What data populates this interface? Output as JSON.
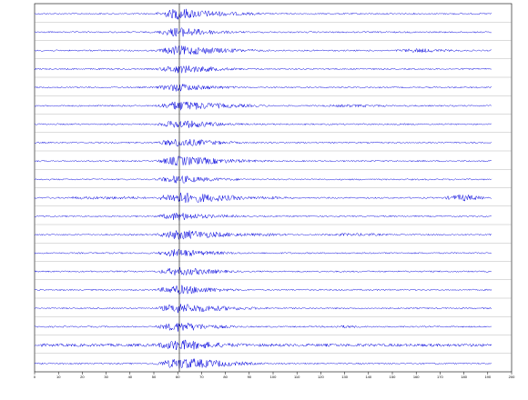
{
  "chart_data": {
    "type": "seismogram",
    "color": "#0000dd",
    "xlim": [
      0,
      200
    ],
    "xticks": [
      0,
      10,
      20,
      30,
      40,
      50,
      60,
      70,
      80,
      90,
      100,
      110,
      120,
      130,
      140,
      150,
      160,
      170,
      180,
      190,
      200
    ],
    "series": [
      {
        "values": [
          1,
          1,
          1,
          1,
          1,
          1,
          8,
          5,
          3,
          2,
          1,
          1,
          1,
          1,
          1,
          1,
          1,
          1,
          1,
          1,
          1
        ]
      },
      {
        "values": [
          1,
          1,
          1,
          1,
          1,
          1,
          7,
          4,
          2,
          1,
          1,
          1,
          1,
          1,
          1,
          1,
          1,
          1,
          1,
          1,
          1
        ]
      },
      {
        "values": [
          1,
          1,
          1,
          1,
          1,
          1,
          7,
          5,
          3,
          2,
          1,
          1,
          1,
          1,
          1,
          1,
          3,
          2,
          1,
          1,
          1
        ]
      },
      {
        "values": [
          1,
          1,
          1,
          1,
          1,
          1,
          6,
          4,
          2,
          1,
          1,
          1,
          1,
          1,
          1,
          1,
          1,
          1,
          1,
          1,
          1
        ]
      },
      {
        "values": [
          1,
          1,
          1,
          1,
          1,
          1,
          6,
          3,
          2,
          1,
          1,
          1,
          1,
          1,
          1,
          1,
          1,
          1,
          1,
          1,
          1
        ]
      },
      {
        "values": [
          1,
          1,
          1,
          1,
          1,
          1,
          7,
          5,
          3,
          2,
          1,
          1,
          1,
          2,
          2,
          1,
          1,
          1,
          1,
          1,
          1
        ]
      },
      {
        "values": [
          1,
          1,
          1,
          1,
          1,
          1,
          6,
          4,
          2,
          1,
          1,
          1,
          1,
          1,
          1,
          1,
          1,
          1,
          1,
          1,
          1
        ]
      },
      {
        "values": [
          1,
          1,
          1,
          1,
          1,
          1,
          6,
          4,
          2,
          1,
          1,
          1,
          1,
          1,
          1,
          1,
          1,
          1,
          1,
          1,
          1
        ]
      },
      {
        "values": [
          1,
          1,
          1,
          1,
          1,
          1,
          7,
          5,
          3,
          2,
          1,
          1,
          1,
          1,
          1,
          1,
          1,
          1,
          1,
          1,
          1
        ]
      },
      {
        "values": [
          1,
          1,
          1,
          1,
          1,
          1,
          6,
          3,
          2,
          1,
          1,
          1,
          1,
          1,
          1,
          1,
          1,
          1,
          1,
          1,
          1
        ]
      },
      {
        "values": [
          1,
          1,
          2,
          2,
          2,
          1,
          8,
          6,
          4,
          2,
          2,
          1,
          1,
          1,
          1,
          1,
          1,
          1,
          5,
          1,
          1
        ]
      },
      {
        "values": [
          1,
          1,
          1,
          1,
          1,
          1,
          6,
          3,
          2,
          1,
          1,
          1,
          1,
          1,
          1,
          1,
          1,
          1,
          1,
          1,
          1
        ]
      },
      {
        "values": [
          1,
          1,
          1,
          1,
          1,
          1,
          7,
          5,
          3,
          2,
          2,
          1,
          1,
          2,
          2,
          1,
          1,
          1,
          1,
          1,
          1
        ]
      },
      {
        "values": [
          1,
          1,
          1,
          1,
          1,
          1,
          6,
          3,
          2,
          1,
          1,
          1,
          1,
          1,
          1,
          1,
          1,
          1,
          1,
          1,
          1
        ]
      },
      {
        "values": [
          1,
          1,
          1,
          1,
          1,
          1,
          6,
          4,
          2,
          1,
          1,
          1,
          1,
          1,
          1,
          1,
          1,
          1,
          1,
          1,
          1
        ]
      },
      {
        "values": [
          1,
          1,
          1,
          1,
          1,
          1,
          7,
          4,
          2,
          1,
          1,
          1,
          1,
          1,
          1,
          1,
          1,
          1,
          1,
          1,
          1
        ]
      },
      {
        "values": [
          1,
          1,
          1,
          1,
          1,
          1,
          7,
          5,
          3,
          2,
          1,
          1,
          1,
          1,
          1,
          1,
          1,
          1,
          1,
          1,
          1
        ]
      },
      {
        "values": [
          1,
          1,
          1,
          1,
          1,
          1,
          7,
          4,
          2,
          1,
          1,
          1,
          1,
          2,
          1,
          1,
          1,
          1,
          1,
          1,
          1
        ]
      },
      {
        "values": [
          2,
          2,
          2,
          2,
          2,
          2,
          8,
          5,
          3,
          2,
          2,
          2,
          2,
          2,
          2,
          2,
          2,
          2,
          2,
          2,
          2
        ]
      },
      {
        "values": [
          1,
          1,
          1,
          1,
          1,
          1,
          8,
          6,
          4,
          2,
          1,
          1,
          1,
          1,
          1,
          1,
          1,
          1,
          1,
          1,
          1
        ]
      }
    ]
  }
}
